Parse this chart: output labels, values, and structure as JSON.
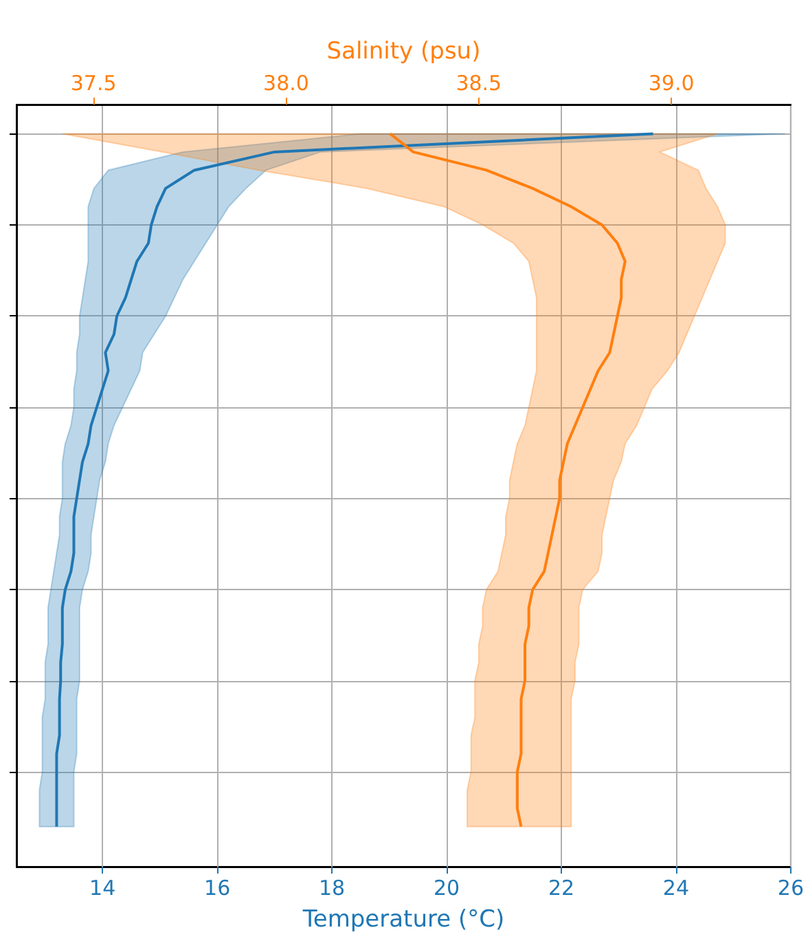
{
  "chart_data": {
    "type": "line",
    "orientation": "horizontal",
    "xlabel": "Temperature (°C)",
    "x2label": "Salinity (psu)",
    "categories": [
      null,
      null,
      null,
      null,
      null,
      null,
      null,
      null,
      null,
      null,
      null,
      null,
      null,
      null,
      null,
      null,
      null,
      null,
      null,
      null,
      null,
      null,
      null,
      null,
      null,
      null,
      null,
      null,
      null,
      null,
      null,
      null,
      null,
      null,
      null,
      null,
      null,
      null,
      null
    ],
    "xlim": [
      12.5,
      26
    ],
    "xticks": [
      14,
      16,
      18,
      20,
      22,
      24,
      26
    ],
    "x2lim": [
      37.3,
      39.31
    ],
    "x2ticks": [
      37.5,
      {
        "value": 38,
        "label": "38.0"
      },
      38.5,
      {
        "value": 39,
        "label": "39.0"
      }
    ],
    "grid": true,
    "series": [
      {
        "color": "#1f77b4",
        "values": [
          23.6,
          17.0,
          15.6,
          15.1,
          14.95,
          14.85,
          14.8,
          14.6,
          14.5,
          14.4,
          14.25,
          14.2,
          14.05,
          14.1,
          14.0,
          13.9,
          13.8,
          13.75,
          13.65,
          13.6,
          13.55,
          13.5,
          13.5,
          13.5,
          13.45,
          13.35,
          13.3,
          13.3,
          13.3,
          13.27,
          13.27,
          13.25,
          13.25,
          13.25,
          13.2,
          13.2,
          13.2,
          13.2,
          13.2
        ],
        "lower": [
          18.5,
          15.4,
          14.1,
          13.85,
          13.75,
          13.75,
          13.75,
          13.75,
          13.7,
          13.65,
          13.6,
          13.6,
          13.55,
          13.55,
          13.5,
          13.5,
          13.45,
          13.35,
          13.3,
          13.3,
          13.3,
          13.25,
          13.25,
          13.2,
          13.15,
          13.1,
          13.05,
          13.05,
          13.05,
          13.0,
          13.0,
          13.0,
          12.95,
          12.95,
          12.95,
          12.95,
          12.9,
          12.9,
          12.9
        ],
        "upper": [
          25.9,
          17.8,
          16.85,
          16.5,
          16.2,
          16.0,
          15.8,
          15.6,
          15.4,
          15.25,
          15.1,
          14.9,
          14.7,
          14.65,
          14.5,
          14.35,
          14.2,
          14.1,
          14.05,
          13.95,
          13.9,
          13.85,
          13.8,
          13.8,
          13.75,
          13.65,
          13.6,
          13.6,
          13.6,
          13.6,
          13.6,
          13.55,
          13.55,
          13.55,
          13.55,
          13.5,
          13.5,
          13.5,
          13.5
        ]
      },
      {
        "color": "#ff7f0e",
        "axis": "x2",
        "values": [
          38.27,
          38.33,
          38.52,
          38.64,
          38.74,
          38.82,
          38.86,
          38.88,
          38.87,
          38.87,
          38.86,
          38.85,
          38.84,
          38.81,
          38.79,
          38.77,
          38.75,
          38.73,
          38.72,
          38.71,
          38.71,
          38.7,
          38.69,
          38.68,
          38.67,
          38.64,
          38.63,
          38.63,
          38.62,
          38.62,
          38.62,
          38.61,
          38.61,
          38.61,
          38.61,
          38.6,
          38.6,
          38.6,
          38.61
        ],
        "lower": [
          37.42,
          37.68,
          37.93,
          38.21,
          38.41,
          38.51,
          38.59,
          38.63,
          38.64,
          38.65,
          38.65,
          38.65,
          38.65,
          38.65,
          38.64,
          38.63,
          38.62,
          38.6,
          38.59,
          38.58,
          38.58,
          38.57,
          38.57,
          38.56,
          38.55,
          38.52,
          38.51,
          38.51,
          38.5,
          38.5,
          38.49,
          38.49,
          38.49,
          38.48,
          38.48,
          38.48,
          38.47,
          38.47,
          38.47
        ],
        "upper": [
          39.12,
          38.97,
          39.07,
          39.09,
          39.12,
          39.14,
          39.14,
          39.12,
          39.1,
          39.08,
          39.06,
          39.04,
          39.02,
          38.99,
          38.95,
          38.93,
          38.91,
          38.88,
          38.87,
          38.85,
          38.84,
          38.83,
          38.82,
          38.82,
          38.81,
          38.77,
          38.76,
          38.76,
          38.76,
          38.75,
          38.75,
          38.74,
          38.74,
          38.74,
          38.74,
          38.74,
          38.74,
          38.74,
          38.74
        ]
      }
    ]
  }
}
